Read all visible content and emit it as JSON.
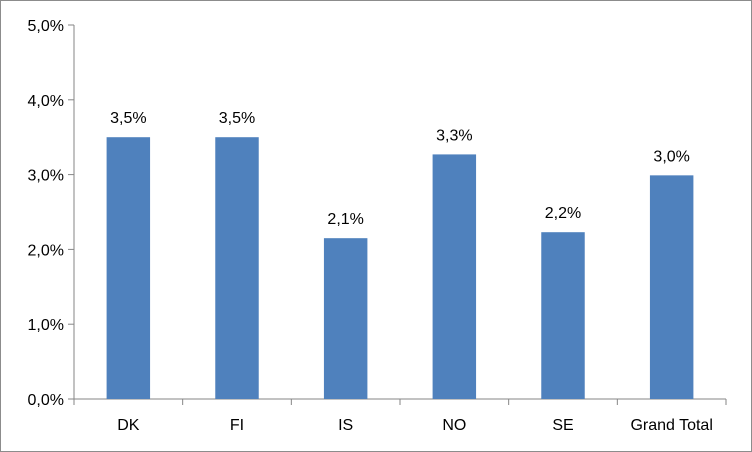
{
  "chart_data": {
    "type": "bar",
    "title": "",
    "xlabel": "",
    "ylabel": "",
    "categories": [
      "DK",
      "FI",
      "IS",
      "NO",
      "SE",
      "Grand Total"
    ],
    "values": [
      3.5,
      3.5,
      2.15,
      3.27,
      2.23,
      2.99
    ],
    "data_labels": [
      "3,5%",
      "3,5%",
      "2,1%",
      "3,3%",
      "2,2%",
      "3,0%"
    ],
    "ylim": [
      0,
      5
    ],
    "y_ticks": [
      0,
      1,
      2,
      3,
      4,
      5
    ],
    "y_tick_labels": [
      "0,0%",
      "1,0%",
      "2,0%",
      "3,0%",
      "4,0%",
      "5,0%"
    ],
    "grid": false,
    "legend": "none",
    "colors": {
      "bar": "#4f81bd",
      "axis": "#868686"
    }
  }
}
